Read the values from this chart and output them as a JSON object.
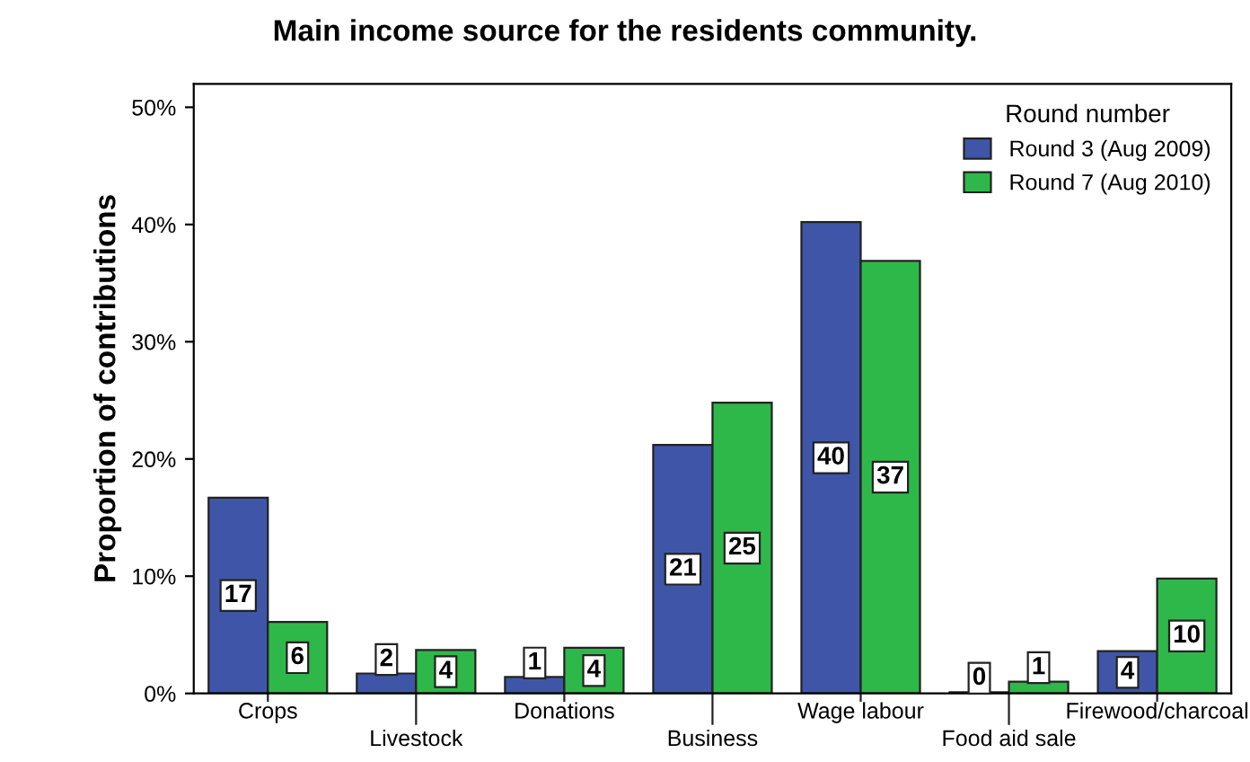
{
  "chart_data": {
    "type": "bar",
    "title": "Main income source for the residents community.",
    "ylabel": "Proportion of contributions",
    "legend_title": "Round number",
    "legend": "top right",
    "grid": false,
    "categories": [
      "Crops",
      "Livestock",
      "Donations",
      "Business",
      "Wage labour",
      "Food aid sale",
      "Firewood/charcoal"
    ],
    "series": [
      {
        "name": "Round 3 (Aug 2009)",
        "color": "#3f56a8",
        "values": [
          16.7,
          1.7,
          1.4,
          21.2,
          40.2,
          0.1,
          3.6
        ],
        "value_labels": [
          "17",
          "2",
          "1",
          "21",
          "40",
          "0",
          "4"
        ]
      },
      {
        "name": "Round 7 (Aug 2010)",
        "color": "#2fb84a",
        "values": [
          6.1,
          3.7,
          3.9,
          24.8,
          36.9,
          1.0,
          9.8
        ],
        "value_labels": [
          "6",
          "4",
          "4",
          "25",
          "37",
          "1",
          "10"
        ]
      }
    ],
    "ylim": [
      0,
      52
    ],
    "yticks": [
      {
        "value": 0,
        "label": "0%"
      },
      {
        "value": 10,
        "label": "10%"
      },
      {
        "value": 20,
        "label": "20%"
      },
      {
        "value": 30,
        "label": "30%"
      },
      {
        "value": 40,
        "label": "40%"
      },
      {
        "value": 50,
        "label": "50%"
      }
    ]
  }
}
